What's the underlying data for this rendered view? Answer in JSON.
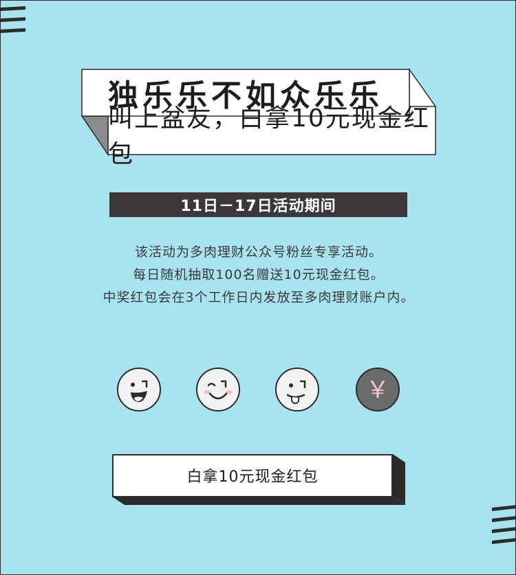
{
  "banner": {
    "title": "独乐乐不如众乐乐",
    "subtitle": "叫上盆友，白拿10元现金红包"
  },
  "period": {
    "label": "11日－17日活动期间"
  },
  "description": {
    "lines": [
      "该活动为多肉理财公众号粉丝专享活动。",
      "每日随机抽取100名赠送10元现金红包。",
      "中奖红包会在3个工作日内发放至多肉理财账户内。"
    ]
  },
  "faces": [
    {
      "icon": "laughing-face-icon"
    },
    {
      "icon": "smiling-face-icon"
    },
    {
      "icon": "tongue-out-face-icon"
    },
    {
      "icon": "yuan-coin-icon",
      "symbol": "￥"
    }
  ],
  "cta": {
    "label": "白拿10元现金红包"
  },
  "colors": {
    "background": "#a8e4f0",
    "dark": "#3d3838",
    "face_fill": "#f2f2f2",
    "coin_fill": "#6b6b6b",
    "coin_symbol": "#f4c6c6",
    "blush": "#f4c0c0"
  }
}
